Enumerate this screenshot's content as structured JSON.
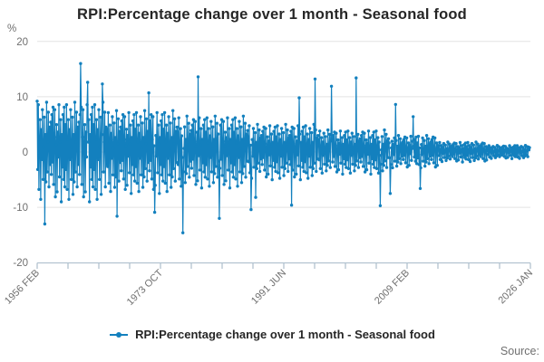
{
  "header": {
    "title": "RPI:Percentage change over 1 month - Seasonal food"
  },
  "legend": {
    "label": "RPI:Percentage change over 1 month - Seasonal food"
  },
  "footer": {
    "source_label": "Source:"
  },
  "chart_data": {
    "type": "line",
    "title": "RPI:Percentage change over 1 month - Seasonal food",
    "unit": "%",
    "xlabel": "",
    "ylabel": "%",
    "ylim": [
      -20,
      20
    ],
    "yticks": [
      20,
      10,
      0,
      -10,
      -20
    ],
    "yticklabels": [
      "20",
      "10",
      "0",
      "-10",
      "-20"
    ],
    "xticklabels": [
      "1956 FEB",
      "1973 OCT",
      "1991 JUN",
      "2009 FEB",
      "2026 JAN"
    ],
    "x_start": "1956 FEB",
    "x_end": "2025 DEC",
    "frequency": "monthly",
    "grid": "horizontal",
    "legend_position": "bottom",
    "marker": "circle",
    "line_color": "#1380be",
    "axis_color": "#b3c3d0",
    "grid_color": "#e3e3e3",
    "series": [
      {
        "name": "RPI:Percentage change over 1 month - Seasonal food",
        "color": "#1380be",
        "values": [
          4.95,
          -3.15,
          8.55,
          -6.75,
          2.25,
          5.85,
          -8.55,
          4.05,
          -1.35,
          7.65,
          -4.95,
          0.9,
          6.3,
          -7.65,
          3.15,
          -5.4,
          9,
          -3.6,
          1.8,
          7.2,
          -6.3,
          4.5,
          -2.25,
          5.4,
          -4.05,
          6.75,
          -1.8,
          8.1,
          -5.85,
          2.7,
          7.65,
          -8.1,
          1.35,
          4.95,
          -7.2,
          3.6,
          -0.9,
          8.55,
          -4.5,
          1.8,
          5.85,
          -9,
          3.15,
          -2.7,
          6.75,
          -4.95,
          8.1,
          -6.3,
          4.95,
          -3.15,
          8.55,
          -6.75,
          2.25,
          5.85,
          -8.55,
          4.05,
          -1.35,
          7.65,
          -4.95,
          0.9,
          6.3,
          -7.65,
          3.15,
          -5.4,
          9,
          -3.6,
          1.8,
          7.2,
          -6.3,
          4.5,
          -2.25,
          5.4,
          -4.05,
          6.75,
          -1.8,
          8.1,
          -5.85,
          2.7,
          7.65,
          -8.1,
          1.35,
          4.95,
          -7.2,
          3.6,
          -0.9,
          8.55,
          -4.5,
          1.8,
          5.85,
          -9,
          3.15,
          -2.7,
          6.75,
          -4.95,
          8.1,
          -6.3,
          4.95,
          -3.15,
          8.55,
          -6.75,
          2.25,
          5.85,
          -8.55,
          4.05,
          -1.35,
          7.65,
          -4.95,
          0.9,
          6.3,
          -7.65,
          3.15,
          -5.4,
          9,
          -3.6,
          1.8,
          7.2,
          -6.3,
          4.5,
          -2.25,
          4.13,
          -2.63,
          7.13,
          -5.63,
          1.88,
          4.88,
          -7.13,
          3.38,
          -1.13,
          6.38,
          -4.13,
          0.75,
          5.25,
          -6.38,
          2.63,
          -4.5,
          7.5,
          -3,
          1.5,
          6,
          -5.25,
          3.75,
          -1.88,
          4.5,
          -3.38,
          5.63,
          -1.5,
          6.75,
          -4.88,
          2.25,
          6.38,
          -6.75,
          1.13,
          4.13,
          -6,
          3,
          -0.75,
          7.13,
          -3.75,
          1.5,
          4.88,
          -7.5,
          2.63,
          -2.25,
          5.63,
          -4.13,
          6.75,
          -5.25,
          4.13,
          -2.63,
          7.13,
          -5.63,
          1.88,
          4.88,
          -7.13,
          3.38,
          -1.13,
          6.38,
          -4.13,
          0.75,
          5.25,
          -6.38,
          2.63,
          -4.5,
          7.5,
          -3,
          1.5,
          6,
          -5.25,
          3.75,
          -1.88,
          4.5,
          -3.38,
          5.63,
          -1.5,
          6.75,
          -4.88,
          2.25,
          6.38,
          -6.75,
          1.13,
          4.13,
          -6,
          3,
          -0.75,
          7.13,
          -3.75,
          1.5,
          4.88,
          -7.5,
          2.63,
          -2.25,
          5.63,
          -4.13,
          6.75,
          -5.25,
          4.13,
          -2.63,
          7.13,
          -5.63,
          1.88,
          4.88,
          -7.13,
          3.38,
          -1.13,
          6.38,
          -4.13,
          0.75,
          5.25,
          -6.38,
          2.63,
          -4.5,
          7.5,
          -3,
          1.5,
          6,
          -5.25,
          3.75,
          -1.88,
          4.5,
          3.58,
          -2.28,
          6.18,
          -4.88,
          1.63,
          4.23,
          -6.18,
          2.93,
          -0.98,
          5.53,
          -3.58,
          0.65,
          4.55,
          -5.53,
          2.28,
          -3.9,
          6.5,
          -2.6,
          1.3,
          5.2,
          -4.55,
          3.25,
          -1.63,
          3.9,
          -2.93,
          4.88,
          -1.3,
          5.85,
          -4.23,
          1.95,
          5.53,
          -5.85,
          0.98,
          3.58,
          -5.2,
          2.6,
          -0.65,
          6.18,
          -3.25,
          1.3,
          4.23,
          -6.5,
          2.28,
          -1.95,
          4.88,
          -3.58,
          5.85,
          -4.55,
          3.58,
          -2.28,
          6.18,
          -4.88,
          1.63,
          4.23,
          -6.18,
          2.93,
          -0.98,
          5.53,
          -3.58,
          0.65,
          4.55,
          -5.53,
          2.28,
          -3.9,
          6.5,
          -2.6,
          1.3,
          5.2,
          -4.55,
          3.25,
          -1.63,
          3.9,
          -2.93,
          4.88,
          -1.3,
          5.85,
          -4.23,
          1.95,
          5.53,
          -5.85,
          0.98,
          3.58,
          -5.2,
          2.6,
          -0.65,
          6.18,
          -3.25,
          1.3,
          4.23,
          -6.5,
          2.28,
          -1.95,
          4.88,
          -3.58,
          5.85,
          -4.55,
          3.58,
          -2.28,
          6.18,
          -4.88,
          1.63,
          4.23,
          -6.18,
          2.93,
          -0.98,
          5.53,
          -3.58,
          0.65,
          4.55,
          -5.53,
          2.28,
          -3.9,
          6.5,
          -2.6,
          1.3,
          5.2,
          -4.55,
          3.25,
          -1.63,
          3.9,
          2.75,
          -1.75,
          4.75,
          -3.75,
          1.25,
          3.25,
          -4.75,
          2.25,
          -0.75,
          4.25,
          -2.75,
          0.5,
          3.5,
          -4.25,
          1.75,
          -3,
          5,
          -2,
          1,
          4,
          -3.5,
          2.5,
          -1.25,
          3,
          -2.25,
          3.75,
          -1,
          4.5,
          -3.25,
          1.5,
          4.25,
          -4.5,
          0.75,
          2.75,
          -4,
          2,
          -0.5,
          4.75,
          -2.5,
          1,
          3.25,
          -5,
          1.75,
          -1.5,
          3.75,
          -2.75,
          4.5,
          -3.5,
          2.75,
          -1.75,
          4.75,
          -3.75,
          1.25,
          3.25,
          -4.75,
          2.25,
          -0.75,
          4.25,
          -2.75,
          0.5,
          3.5,
          -4.25,
          1.75,
          -3,
          5,
          -2,
          1,
          4,
          -3.5,
          2.5,
          -1.25,
          3,
          -2.25,
          3.75,
          -1,
          4.5,
          -3.25,
          1.5,
          4.25,
          -4.5,
          0.75,
          2.75,
          -4,
          2,
          -0.5,
          4.75,
          -2.5,
          1,
          3.25,
          -5,
          1.75,
          -1.5,
          3.75,
          -2.75,
          4.5,
          -3.5,
          2.75,
          -1.75,
          4.75,
          -3.75,
          1.25,
          3.25,
          -4.75,
          2.25,
          -0.75,
          4.25,
          -2.75,
          0.5,
          3.5,
          -4.25,
          1.75,
          -3,
          5,
          -2,
          1,
          4,
          -3.5,
          2.5,
          -1.25,
          3,
          2.2,
          -1.4,
          3.8,
          -3,
          1,
          2.6,
          -3.8,
          1.8,
          -0.6,
          3.4,
          -2.2,
          0.4,
          2.8,
          -3.4,
          1.4,
          -2.4,
          4,
          -1.6,
          0.8,
          3.2,
          -2.8,
          2,
          -1,
          2.4,
          -1.8,
          3,
          -0.8,
          3.6,
          -2.6,
          1.2,
          3.4,
          -3.6,
          0.6,
          2.2,
          -3.2,
          1.6,
          -0.4,
          3.8,
          -2,
          0.8,
          2.6,
          -4,
          1.4,
          -1.2,
          3,
          -2.2,
          3.6,
          -2.8,
          2.2,
          -1.4,
          3.8,
          -3,
          1,
          2.6,
          -3.8,
          1.8,
          -0.6,
          3.4,
          -2.2,
          0.4,
          2.8,
          -3.4,
          1.4,
          -2.4,
          4,
          -1.6,
          0.8,
          3.2,
          -2.8,
          2,
          -1,
          2.4,
          -1.8,
          3,
          -0.8,
          3.6,
          -2.6,
          1.2,
          3.4,
          -3.6,
          0.6,
          2.2,
          -3.2,
          1.6,
          -0.4,
          3.8,
          -2,
          0.8,
          2.6,
          -4,
          1.4,
          -1.2,
          3,
          -2.2,
          3.6,
          -2.8,
          2.2,
          -1.4,
          3.8,
          -3,
          1,
          2.6,
          -3.8,
          1.8,
          -0.6,
          3.4,
          -2.2,
          0.4,
          2.8,
          -3.4,
          1.4,
          -2.4,
          4,
          -1.6,
          0.8,
          3.2,
          -2.8,
          2,
          -1,
          2.4,
          1.65,
          -1.05,
          2.85,
          -2.25,
          0.75,
          1.95,
          -2.85,
          1.35,
          -0.45,
          2.55,
          -1.65,
          0.3,
          2.1,
          -2.55,
          1.05,
          -1.8,
          3,
          -1.2,
          0.6,
          2.4,
          -2.1,
          1.5,
          -0.75,
          1.8,
          -1.35,
          2.25,
          -0.6,
          2.7,
          -1.95,
          0.9,
          2.55,
          -2.7,
          0.45,
          1.65,
          -2.4,
          1.2,
          -0.3,
          2.85,
          -1.5,
          0.6,
          1.95,
          -3,
          1.05,
          -0.9,
          2.25,
          -1.65,
          2.7,
          -2.1,
          1.65,
          -1.05,
          2.85,
          -2.25,
          0.75,
          1.95,
          -2.85,
          1.35,
          -0.45,
          2.55,
          -1.65,
          0.3,
          2.1,
          -2.55,
          1.05,
          -1.8,
          3,
          -1.2,
          0.6,
          2.4,
          -2.1,
          1.5,
          -0.75,
          1.8,
          -1.35,
          2.25,
          -0.6,
          2.7,
          -1.95,
          0.9,
          2.55,
          -2.7,
          0.45,
          1.65,
          -2.4,
          1.2,
          0.99,
          -0.63,
          1.71,
          -1.35,
          0.45,
          1.17,
          -1.71,
          0.81,
          -0.27,
          1.53,
          -0.99,
          0.18,
          1.26,
          -1.53,
          0.63,
          -1.08,
          1.8,
          -0.72,
          0.36,
          1.44,
          -1.26,
          0.9,
          -0.45,
          1.08,
          -0.81,
          1.35,
          -0.36,
          1.62,
          -1.17,
          0.54,
          1.53,
          -1.62,
          0.27,
          0.99,
          -1.44,
          0.72,
          -0.18,
          1.71,
          -0.9,
          0.36,
          1.17,
          -1.8,
          0.63,
          -0.54,
          1.35,
          -0.99,
          1.62,
          -1.26,
          0.99,
          -0.63,
          1.71,
          -1.35,
          0.45,
          1.17,
          -1.71,
          0.81,
          -0.27,
          1.53,
          -0.99,
          0.18,
          1.26,
          -1.53,
          0.63,
          -1.08,
          1.8,
          -0.72,
          0.36,
          1.44,
          -1.26,
          0.9,
          -0.45,
          1.08,
          -0.81,
          1.35,
          -0.36,
          1.62,
          -1.17,
          0.54,
          1.53,
          -1.62,
          0.27,
          0.99,
          -1.44,
          0.72,
          0.66,
          -0.42,
          1.14,
          -0.9,
          0.3,
          0.78,
          -1.14,
          0.54,
          -0.18,
          1.02,
          -0.66,
          0.12,
          0.84,
          -1.02,
          0.42,
          -0.72,
          1.2,
          -0.48,
          0.24,
          0.96,
          -0.84,
          0.6,
          -0.3,
          0.72,
          -0.54,
          0.9,
          -0.24,
          1.08,
          -0.78,
          0.36,
          1.02,
          -1.08,
          0.18,
          0.66,
          -0.96,
          0.48,
          -0.12,
          1.14,
          -0.6,
          0.24,
          0.78,
          -1.2,
          0.42,
          -0.36,
          0.9,
          -0.66,
          1.14,
          -0.84,
          0.66,
          -0.42,
          1.14,
          -0.9,
          0.3,
          0.78,
          -1.14,
          0.54,
          -0.18,
          1.02,
          -0.66,
          0.12,
          0.84,
          -1.02,
          0.42,
          -0.72,
          1.2,
          -0.48,
          0.24,
          0.96,
          -0.84,
          0.6,
          -0.3,
          0.72
        ],
        "overrides": {
          "0": 9.2,
          "13": -13.0,
          "74": 16.0,
          "86": 12.6,
          "111": 12.3,
          "136": -11.6,
          "190": 10.7,
          "200": -10.9,
          "248": -14.6,
          "274": 13.6,
          "310": -12.0,
          "364": -10.4,
          "372": -8.2,
          "433": -9.6,
          "446": 9.8,
          "473": 13.2,
          "501": 11.9,
          "543": 13.4,
          "584": -9.7,
          "601": -7.5,
          "610": 8.6,
          "640": 6.4,
          "652": -6.6,
          "836": 0.9,
          "837": 0.4,
          "838": 0.8
        }
      }
    ]
  }
}
